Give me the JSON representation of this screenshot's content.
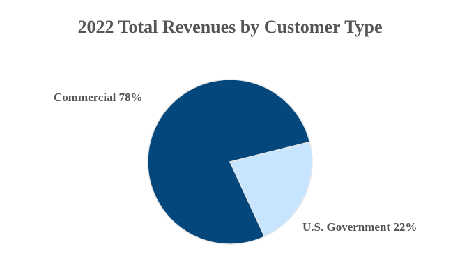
{
  "chart_data": {
    "type": "pie",
    "title": "2022 Total Revenues by Customer Type",
    "slices": [
      {
        "name": "Commercial",
        "value": 78,
        "label": "Commercial  78%",
        "color": "#03477c"
      },
      {
        "name": "U.S. Government",
        "value": 22,
        "label": "U.S. Government  22%",
        "color": "#c7e5fe"
      }
    ],
    "unit": "%",
    "start_angle_deg": 76,
    "legend": "none"
  }
}
